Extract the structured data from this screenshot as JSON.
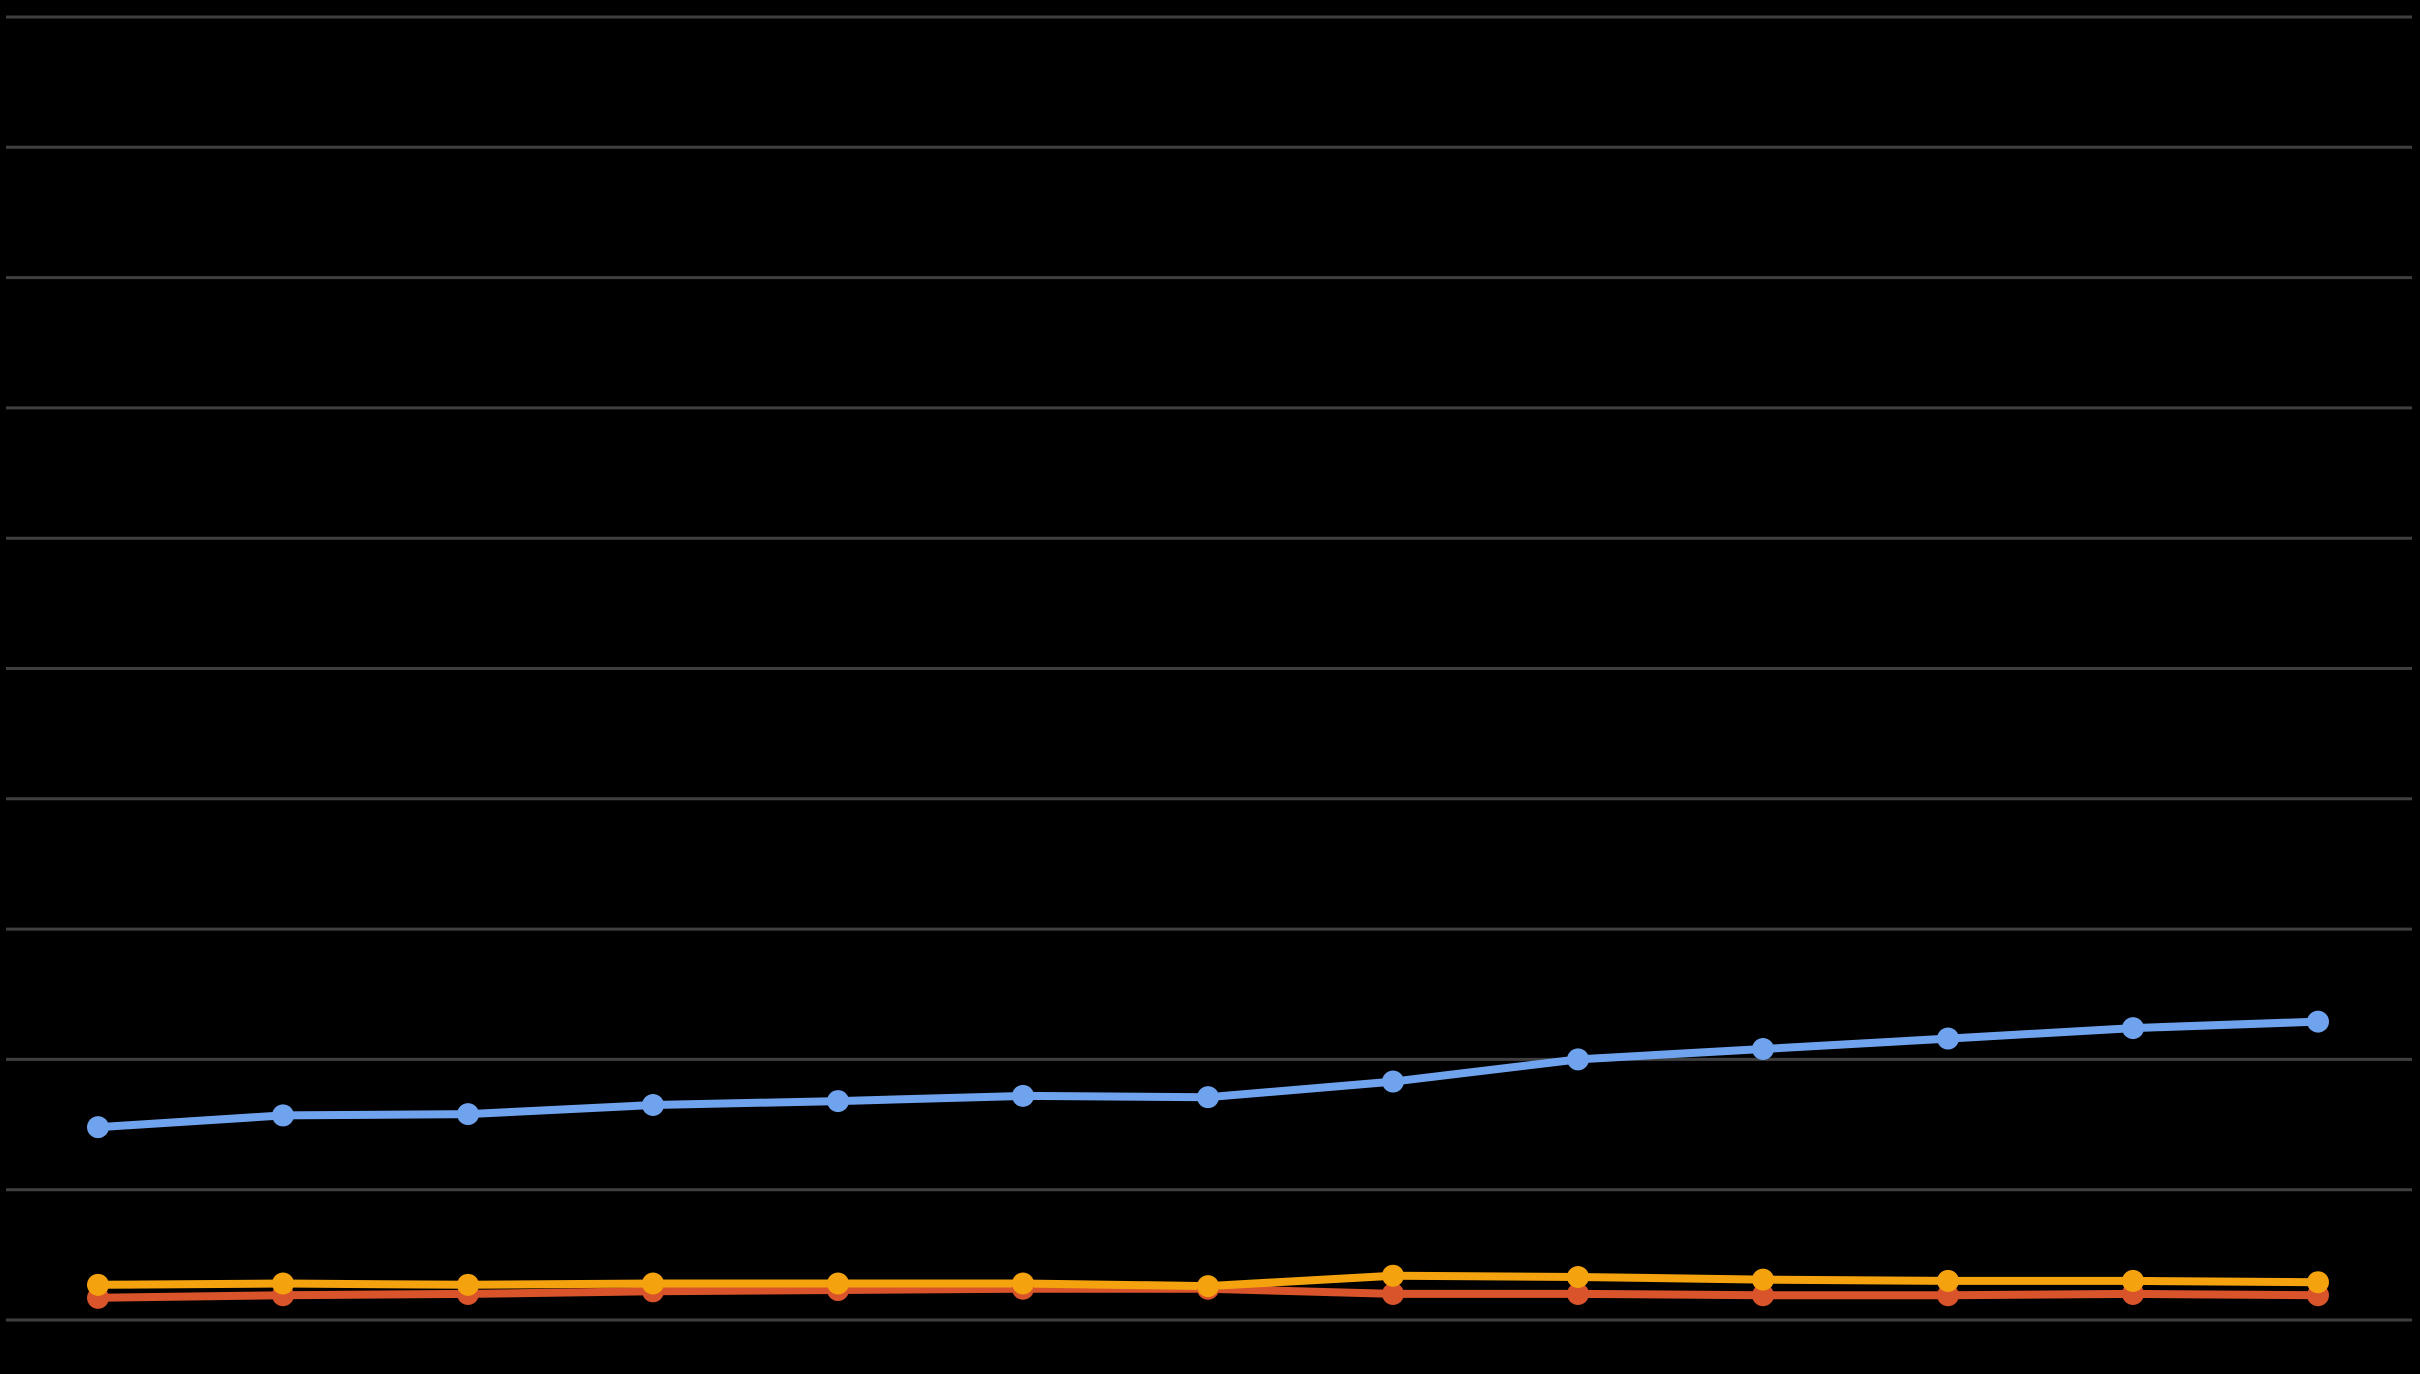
{
  "chart_data": {
    "type": "line",
    "title": "",
    "xlabel": "",
    "ylabel": "",
    "x": [
      1,
      2,
      3,
      4,
      5,
      6,
      7,
      8,
      9,
      10,
      11,
      12,
      13
    ],
    "ylim": [
      0,
      100
    ],
    "yticks": [
      0,
      10,
      20,
      30,
      40,
      50,
      60,
      70,
      80,
      90,
      100
    ],
    "grid": true,
    "legend": "none",
    "series": [
      {
        "color": "#6fa3ee",
        "values": [
          14.8,
          15.7,
          15.8,
          16.5,
          16.8,
          17.2,
          17.1,
          18.3,
          20.0,
          20.8,
          21.6,
          22.4,
          22.9
        ]
      },
      {
        "color": "#f5a20f",
        "values": [
          2.7,
          2.8,
          2.7,
          2.8,
          2.8,
          2.8,
          2.6,
          3.4,
          3.3,
          3.1,
          3.0,
          3.0,
          2.9
        ]
      },
      {
        "color": "#d9542b",
        "values": [
          1.7,
          1.9,
          2.0,
          2.2,
          2.3,
          2.4,
          2.4,
          2.0,
          2.0,
          1.9,
          1.9,
          2.0,
          1.9
        ]
      }
    ]
  }
}
